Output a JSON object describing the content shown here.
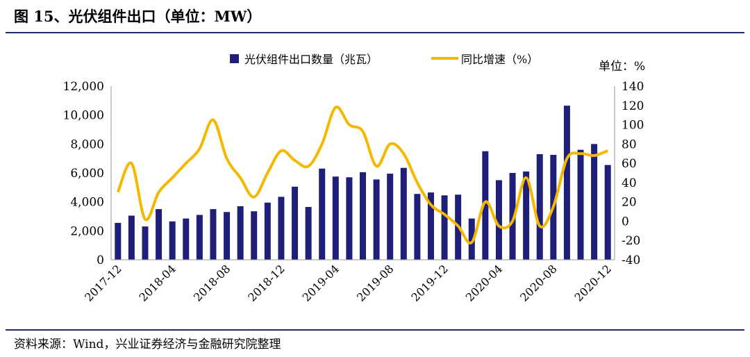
{
  "figure_title": "图 15、光伏组件出口（单位：MW）",
  "source": "资料来源：Wind，兴业证券经济与金融研究院整理",
  "colors": {
    "bar": "#1f1f7a",
    "line": "#f5b800",
    "rule": "#1f2a6b"
  },
  "chart_data": {
    "type": "bar",
    "unit_label": "单位：%",
    "x": [
      "2017-12",
      "2018-01",
      "2018-02",
      "2018-03",
      "2018-04",
      "2018-05",
      "2018-06",
      "2018-07",
      "2018-08",
      "2018-09",
      "2018-10",
      "2018-11",
      "2018-12",
      "2019-01",
      "2019-02",
      "2019-03",
      "2019-04",
      "2019-05",
      "2019-06",
      "2019-07",
      "2019-08",
      "2019-09",
      "2019-10",
      "2019-11",
      "2019-12",
      "2020-01",
      "2020-02",
      "2020-03",
      "2020-04",
      "2020-05",
      "2020-06",
      "2020-07",
      "2020-08",
      "2020-09",
      "2020-10",
      "2020-11",
      "2020-12"
    ],
    "tick_labels": [
      "2017-12",
      "2018-04",
      "2018-08",
      "2018-12",
      "2019-04",
      "2019-08",
      "2019-12",
      "2020-04",
      "2020-08",
      "2020-12"
    ],
    "left_axis": {
      "ylim": [
        0,
        12000
      ],
      "ticks": [
        "0",
        "2,000",
        "4,000",
        "6,000",
        "8,000",
        "10,000",
        "12,000"
      ]
    },
    "right_axis": {
      "ylim": [
        -40,
        140
      ],
      "ticks": [
        "-40",
        "-20",
        "0",
        "20",
        "40",
        "60",
        "80",
        "100",
        "120",
        "140"
      ]
    },
    "legend_position": "top",
    "series": [
      {
        "name": "光伏组件出口数量（兆瓦）",
        "type": "bar",
        "axis": "left",
        "values": [
          2550,
          3050,
          2300,
          3500,
          2650,
          2850,
          3100,
          3500,
          3300,
          3700,
          3350,
          3950,
          4350,
          5050,
          3650,
          6300,
          5750,
          5700,
          6050,
          5550,
          5950,
          6350,
          4550,
          4650,
          4450,
          4500,
          2850,
          7500,
          5500,
          6000,
          6100,
          7300,
          7250,
          10650,
          7600,
          8000,
          6550
        ]
      },
      {
        "name": "同比增速（%）",
        "type": "line",
        "axis": "right",
        "values": [
          30,
          60,
          2,
          30,
          45,
          60,
          75,
          105,
          65,
          45,
          25,
          50,
          73,
          63,
          57,
          80,
          118,
          100,
          93,
          57,
          80,
          70,
          40,
          17,
          7,
          -5,
          -22,
          20,
          -5,
          0,
          45,
          -5,
          15,
          65,
          70,
          68,
          73
        ]
      }
    ]
  }
}
